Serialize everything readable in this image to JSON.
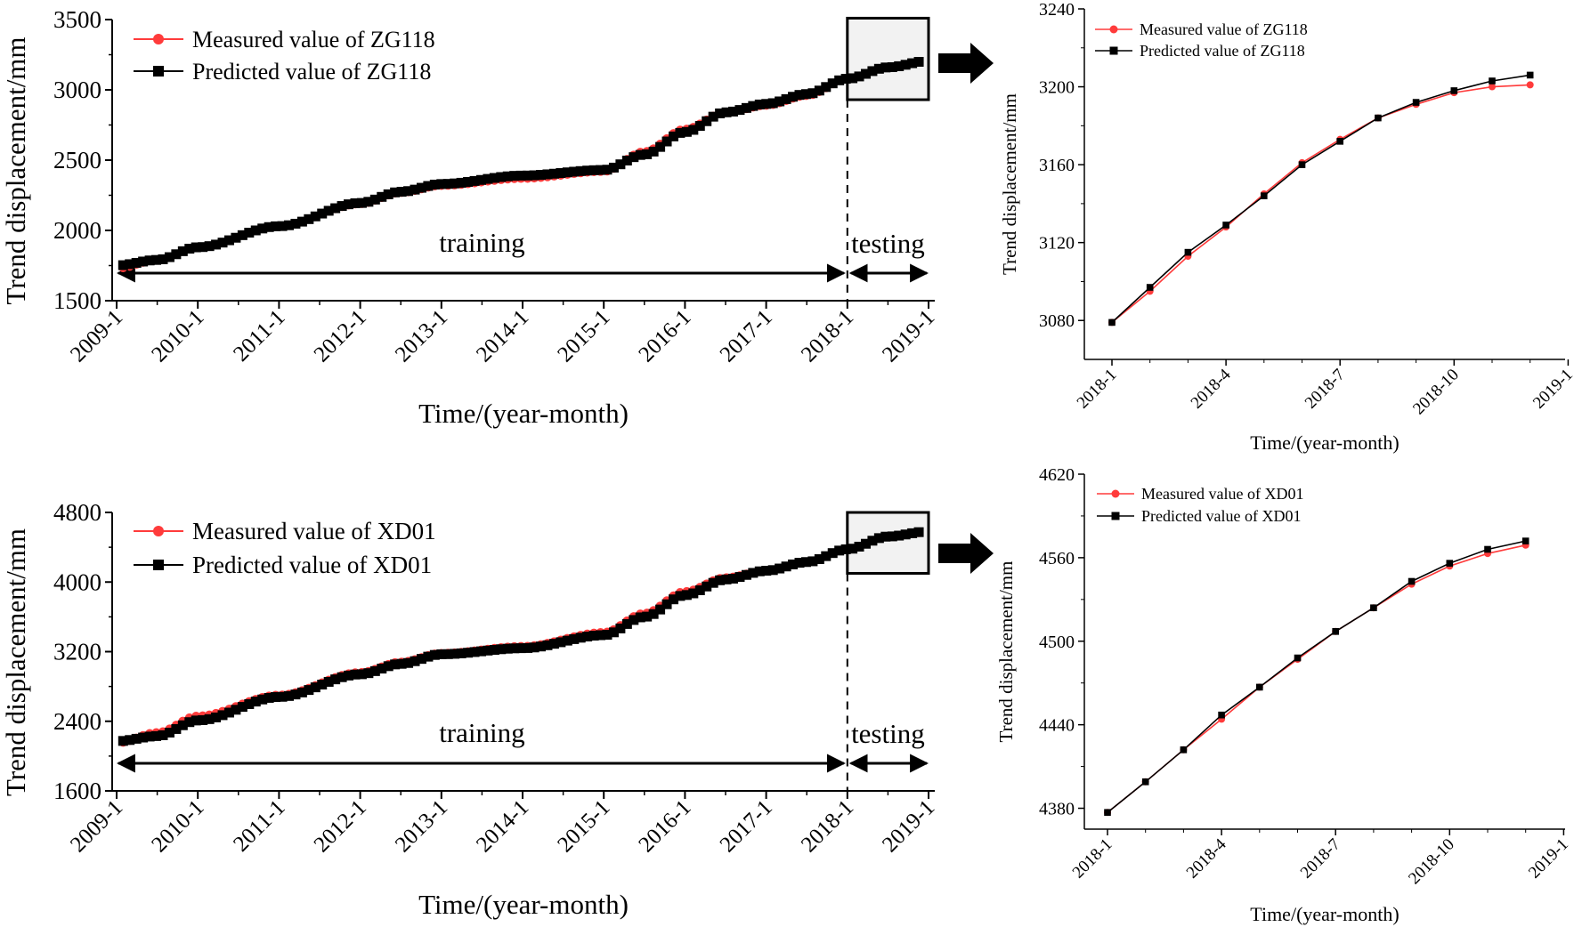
{
  "chart_data": [
    {
      "id": "main-zg118",
      "type": "line",
      "ylabel": "Trend displacement/mm",
      "xlabel": "Time/(year-month)",
      "yticks": [
        1500,
        2000,
        2500,
        3000,
        3500
      ],
      "ylim": [
        1500,
        3500
      ],
      "xlim": [
        2009.0,
        2019.0
      ],
      "xticks": [
        "2009-1",
        "2010-1",
        "2011-1",
        "2012-1",
        "2013-1",
        "2014-1",
        "2015-1",
        "2016-1",
        "2017-1",
        "2018-1",
        "2019-1"
      ],
      "split_x": 2018.0,
      "zoom_box": {
        "x": [
          2018.0,
          2019.0
        ],
        "y": [
          2930,
          3510
        ]
      },
      "annotations": {
        "training": "training",
        "testing": "testing"
      },
      "series": [
        {
          "name": "Measured value of ZG118",
          "color": "#ff3b3b",
          "marker": "circle",
          "anchors": [
            [
              2009.0,
              1730
            ],
            [
              2009.5,
              1790
            ],
            [
              2010.0,
              1880
            ],
            [
              2011.0,
              2030
            ],
            [
              2012.0,
              2190
            ],
            [
              2012.5,
              2270
            ],
            [
              2013.0,
              2320
            ],
            [
              2014.0,
              2370
            ],
            [
              2015.0,
              2420
            ],
            [
              2015.5,
              2560
            ],
            [
              2016.0,
              2720
            ],
            [
              2016.5,
              2840
            ],
            [
              2017.0,
              2890
            ],
            [
              2017.5,
              2960
            ],
            [
              2018.0,
              3079
            ],
            [
              2018.5,
              3160
            ],
            [
              2019.0,
              3202
            ]
          ]
        },
        {
          "name": "Predicted value of ZG118",
          "color": "#000000",
          "marker": "square",
          "anchors": [
            [
              2009.0,
              1750
            ],
            [
              2009.5,
              1790
            ],
            [
              2010.0,
              1880
            ],
            [
              2011.0,
              2030
            ],
            [
              2012.0,
              2195
            ],
            [
              2012.5,
              2275
            ],
            [
              2013.0,
              2330
            ],
            [
              2014.0,
              2390
            ],
            [
              2015.0,
              2430
            ],
            [
              2015.5,
              2540
            ],
            [
              2016.0,
              2700
            ],
            [
              2016.5,
              2840
            ],
            [
              2017.0,
              2900
            ],
            [
              2017.5,
              2970
            ],
            [
              2018.0,
              3079
            ],
            [
              2018.5,
              3160
            ],
            [
              2019.0,
              3206
            ]
          ]
        }
      ]
    },
    {
      "id": "zoom-zg118",
      "type": "line",
      "ylabel": "Trend displacement/mm",
      "xlabel": "Time/(year-month)",
      "yticks": [
        3080,
        3120,
        3160,
        3200,
        3240
      ],
      "ylim": [
        3060,
        3240
      ],
      "xticks": [
        "2018-1",
        "2018-4",
        "2018-7",
        "2018-10",
        "2019-1"
      ],
      "x_months": [
        1,
        2,
        3,
        4,
        5,
        6,
        7,
        8,
        9,
        10,
        11,
        12
      ],
      "series": [
        {
          "name": "Measured value of ZG118",
          "color": "#ff3b3b",
          "marker": "circle",
          "values": [
            3079,
            3095,
            3113,
            3128,
            3145,
            3161,
            3173,
            3184,
            3191,
            3197,
            3200,
            3201
          ]
        },
        {
          "name": "Predicted value of ZG118",
          "color": "#000000",
          "marker": "square",
          "values": [
            3079,
            3097,
            3115,
            3129,
            3144,
            3160,
            3172,
            3184,
            3192,
            3198,
            3203,
            3206
          ]
        }
      ]
    },
    {
      "id": "main-xd01",
      "type": "line",
      "ylabel": "Trend displacement/mm",
      "xlabel": "Time/(year-month)",
      "yticks": [
        1600,
        2400,
        3200,
        4000,
        4800
      ],
      "ylim": [
        1600,
        4800
      ],
      "xlim": [
        2009.0,
        2019.0
      ],
      "xticks": [
        "2009-1",
        "2010-1",
        "2011-1",
        "2012-1",
        "2013-1",
        "2014-1",
        "2015-1",
        "2016-1",
        "2017-1",
        "2018-1",
        "2019-1"
      ],
      "split_x": 2018.0,
      "zoom_box": {
        "x": [
          2018.0,
          2019.0
        ],
        "y": [
          4100,
          4800
        ]
      },
      "annotations": {
        "training": "training",
        "testing": "testing"
      },
      "series": [
        {
          "name": "Measured value of XD01",
          "color": "#ff3b3b",
          "marker": "circle",
          "anchors": [
            [
              2009.0,
              2150
            ],
            [
              2009.5,
              2270
            ],
            [
              2010.0,
              2460
            ],
            [
              2011.0,
              2700
            ],
            [
              2012.0,
              2960
            ],
            [
              2012.5,
              3080
            ],
            [
              2013.0,
              3180
            ],
            [
              2014.0,
              3260
            ],
            [
              2015.0,
              3420
            ],
            [
              2015.5,
              3640
            ],
            [
              2016.0,
              3890
            ],
            [
              2016.5,
              4050
            ],
            [
              2017.0,
              4130
            ],
            [
              2017.5,
              4230
            ],
            [
              2018.0,
              4377
            ],
            [
              2018.5,
              4523
            ],
            [
              2019.0,
              4575
            ]
          ]
        },
        {
          "name": "Predicted value of XD01",
          "color": "#000000",
          "marker": "square",
          "anchors": [
            [
              2009.0,
              2170
            ],
            [
              2009.5,
              2230
            ],
            [
              2010.0,
              2410
            ],
            [
              2011.0,
              2680
            ],
            [
              2012.0,
              2940
            ],
            [
              2012.5,
              3060
            ],
            [
              2013.0,
              3170
            ],
            [
              2014.0,
              3240
            ],
            [
              2015.0,
              3390
            ],
            [
              2015.5,
              3600
            ],
            [
              2016.0,
              3850
            ],
            [
              2016.5,
              4030
            ],
            [
              2017.0,
              4130
            ],
            [
              2017.5,
              4230
            ],
            [
              2018.0,
              4377
            ],
            [
              2018.5,
              4523
            ],
            [
              2019.0,
              4582
            ]
          ]
        }
      ]
    },
    {
      "id": "zoom-xd01",
      "type": "line",
      "ylabel": "Trend displacement/mm",
      "xlabel": "Time/(year-month)",
      "yticks": [
        4380,
        4440,
        4500,
        4560,
        4620
      ],
      "ylim": [
        4365,
        4620
      ],
      "xticks": [
        "2018-1",
        "2018-4",
        "2018-7",
        "2018-10",
        "2019-1"
      ],
      "x_months": [
        1,
        2,
        3,
        4,
        5,
        6,
        7,
        8,
        9,
        10,
        11,
        12
      ],
      "series": [
        {
          "name": "Measured value of XD01",
          "color": "#ff3b3b",
          "marker": "circle",
          "values": [
            4377,
            4399,
            4422,
            4444,
            4467,
            4487,
            4507,
            4524,
            4541,
            4554,
            4563,
            4569
          ]
        },
        {
          "name": "Predicted value of XD01",
          "color": "#000000",
          "marker": "square",
          "values": [
            4377,
            4399,
            4422,
            4447,
            4467,
            4488,
            4507,
            4524,
            4543,
            4556,
            4566,
            4572
          ]
        }
      ]
    }
  ]
}
